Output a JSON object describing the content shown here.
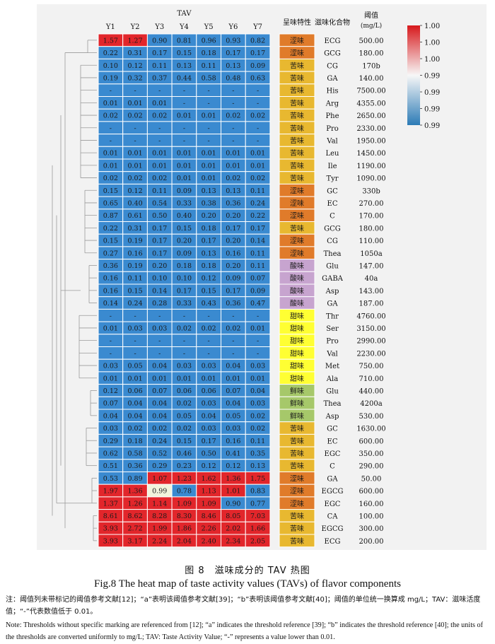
{
  "chart_data": {
    "type": "heatmap",
    "title": "TAV",
    "columns": [
      "Y1",
      "Y2",
      "Y3",
      "Y4",
      "Y5",
      "Y6",
      "Y7"
    ],
    "extra_headers": [
      "呈味特性",
      "滋味化合物",
      "阈值",
      "(mg/L)"
    ],
    "colorbar": {
      "ticks": [
        "1.00",
        "1.00",
        "1.00",
        "0.99",
        "0.99",
        "0.99",
        "0.99"
      ],
      "colors": [
        "#d7191c",
        "#f7f7f7",
        "#2c7bb6"
      ]
    },
    "taste_colors": {
      "涩味": "#e07b2a",
      "苦味": "#e8b830",
      "酸味": "#c7a4cf",
      "甜味": "#ffff33",
      "鲜味": "#a6c86a"
    },
    "rows": [
      {
        "values": [
          "1.57",
          "1.27",
          "0.90",
          "0.81",
          "0.96",
          "0.93",
          "0.82"
        ],
        "levels": [
          2,
          2,
          0,
          0,
          0,
          0,
          0
        ],
        "taste": "涩味",
        "compound": "ECG",
        "threshold": "500.00"
      },
      {
        "values": [
          "0.22",
          "0.31",
          "0.17",
          "0.15",
          "0.18",
          "0.17",
          "0.17"
        ],
        "levels": [
          0,
          0,
          0,
          0,
          0,
          0,
          0
        ],
        "taste": "涩味",
        "compound": "GCG",
        "threshold": "180.00"
      },
      {
        "values": [
          "0.10",
          "0.12",
          "0.11",
          "0.13",
          "0.11",
          "0.13",
          "0.09"
        ],
        "levels": [
          0,
          0,
          0,
          0,
          0,
          0,
          0
        ],
        "taste": "苦味",
        "compound": "CG",
        "threshold": "170b"
      },
      {
        "values": [
          "0.19",
          "0.32",
          "0.37",
          "0.44",
          "0.58",
          "0.48",
          "0.63"
        ],
        "levels": [
          0,
          0,
          0,
          0,
          0,
          0,
          0
        ],
        "taste": "苦味",
        "compound": "GA",
        "threshold": "140.00"
      },
      {
        "values": [
          "-",
          "-",
          "-",
          "-",
          "-",
          "-",
          "-"
        ],
        "levels": [
          0,
          0,
          0,
          0,
          0,
          0,
          0
        ],
        "taste": "苦味",
        "compound": "His",
        "threshold": "7500.00"
      },
      {
        "values": [
          "0.01",
          "0.01",
          "0.01",
          "-",
          "-",
          "-",
          "-"
        ],
        "levels": [
          0,
          0,
          0,
          0,
          0,
          0,
          0
        ],
        "taste": "苦味",
        "compound": "Arg",
        "threshold": "4355.00"
      },
      {
        "values": [
          "0.02",
          "0.02",
          "0.02",
          "0.01",
          "0.01",
          "0.02",
          "0.02"
        ],
        "levels": [
          0,
          0,
          0,
          0,
          0,
          0,
          0
        ],
        "taste": "苦味",
        "compound": "Phe",
        "threshold": "2650.00"
      },
      {
        "values": [
          "-",
          "-",
          "-",
          "-",
          "-",
          "-",
          "-"
        ],
        "levels": [
          0,
          0,
          0,
          0,
          0,
          0,
          0
        ],
        "taste": "苦味",
        "compound": "Pro",
        "threshold": "2330.00"
      },
      {
        "values": [
          "-",
          "-",
          "-",
          "-",
          "-",
          "-",
          "-"
        ],
        "levels": [
          0,
          0,
          0,
          0,
          0,
          0,
          0
        ],
        "taste": "苦味",
        "compound": "Val",
        "threshold": "1950.00"
      },
      {
        "values": [
          "0.01",
          "0.01",
          "0.01",
          "0.01",
          "0.01",
          "0.01",
          "0.01"
        ],
        "levels": [
          0,
          0,
          0,
          0,
          0,
          0,
          0
        ],
        "taste": "苦味",
        "compound": "Leu",
        "threshold": "1450.00"
      },
      {
        "values": [
          "0.01",
          "0.01",
          "0.01",
          "0.01",
          "0.01",
          "0.01",
          "0.01"
        ],
        "levels": [
          0,
          0,
          0,
          0,
          0,
          0,
          0
        ],
        "taste": "苦味",
        "compound": "Ile",
        "threshold": "1190.00"
      },
      {
        "values": [
          "0.02",
          "0.02",
          "0.02",
          "0.01",
          "0.01",
          "0.02",
          "0.02"
        ],
        "levels": [
          0,
          0,
          0,
          0,
          0,
          0,
          0
        ],
        "taste": "苦味",
        "compound": "Tyr",
        "threshold": "1090.00"
      },
      {
        "values": [
          "0.15",
          "0.12",
          "0.11",
          "0.09",
          "0.13",
          "0.13",
          "0.11"
        ],
        "levels": [
          0,
          0,
          0,
          0,
          0,
          0,
          0
        ],
        "taste": "涩味",
        "compound": "GC",
        "threshold": "330b"
      },
      {
        "values": [
          "0.65",
          "0.40",
          "0.54",
          "0.33",
          "0.38",
          "0.36",
          "0.24"
        ],
        "levels": [
          0,
          0,
          0,
          0,
          0,
          0,
          0
        ],
        "taste": "涩味",
        "compound": "EC",
        "threshold": "270.00"
      },
      {
        "values": [
          "0.87",
          "0.61",
          "0.50",
          "0.40",
          "0.20",
          "0.20",
          "0.22"
        ],
        "levels": [
          0,
          0,
          0,
          0,
          0,
          0,
          0
        ],
        "taste": "涩味",
        "compound": "C",
        "threshold": "170.00"
      },
      {
        "values": [
          "0.22",
          "0.31",
          "0.17",
          "0.15",
          "0.18",
          "0.17",
          "0.17"
        ],
        "levels": [
          0,
          0,
          0,
          0,
          0,
          0,
          0
        ],
        "taste": "苦味",
        "compound": "GCG",
        "threshold": "180.00"
      },
      {
        "values": [
          "0.15",
          "0.19",
          "0.17",
          "0.20",
          "0.17",
          "0.20",
          "0.14"
        ],
        "levels": [
          0,
          0,
          0,
          0,
          0,
          0,
          0
        ],
        "taste": "涩味",
        "compound": "CG",
        "threshold": "110.00"
      },
      {
        "values": [
          "0.27",
          "0.16",
          "0.17",
          "0.09",
          "0.13",
          "0.16",
          "0.11"
        ],
        "levels": [
          0,
          0,
          0,
          0,
          0,
          0,
          0
        ],
        "taste": "涩味",
        "compound": "Thea",
        "threshold": "1050a"
      },
      {
        "values": [
          "0.36",
          "0.19",
          "0.20",
          "0.18",
          "0.18",
          "0.20",
          "0.11"
        ],
        "levels": [
          0,
          0,
          0,
          0,
          0,
          0,
          0
        ],
        "taste": "酸味",
        "compound": "Glu",
        "threshold": "147.00"
      },
      {
        "values": [
          "0.16",
          "0.11",
          "0.10",
          "0.10",
          "0.12",
          "0.09",
          "0.07"
        ],
        "levels": [
          0,
          0,
          0,
          0,
          0,
          0,
          0
        ],
        "taste": "酸味",
        "compound": "GABA",
        "threshold": "40a"
      },
      {
        "values": [
          "0.16",
          "0.15",
          "0.14",
          "0.17",
          "0.15",
          "0.17",
          "0.09"
        ],
        "levels": [
          0,
          0,
          0,
          0,
          0,
          0,
          0
        ],
        "taste": "酸味",
        "compound": "Asp",
        "threshold": "143.00"
      },
      {
        "values": [
          "0.14",
          "0.24",
          "0.28",
          "0.33",
          "0.43",
          "0.36",
          "0.47"
        ],
        "levels": [
          0,
          0,
          0,
          0,
          0,
          0,
          0
        ],
        "taste": "酸味",
        "compound": "GA",
        "threshold": "187.00"
      },
      {
        "values": [
          "-",
          "-",
          "-",
          "-",
          "-",
          "-",
          "-"
        ],
        "levels": [
          0,
          0,
          0,
          0,
          0,
          0,
          0
        ],
        "taste": "甜味",
        "compound": "Thr",
        "threshold": "4760.00"
      },
      {
        "values": [
          "0.01",
          "0.03",
          "0.03",
          "0.02",
          "0.02",
          "0.02",
          "0.01"
        ],
        "levels": [
          0,
          0,
          0,
          0,
          0,
          0,
          0
        ],
        "taste": "甜味",
        "compound": "Ser",
        "threshold": "3150.00"
      },
      {
        "values": [
          "-",
          "-",
          "-",
          "-",
          "-",
          "-",
          "-"
        ],
        "levels": [
          0,
          0,
          0,
          0,
          0,
          0,
          0
        ],
        "taste": "甜味",
        "compound": "Pro",
        "threshold": "2990.00"
      },
      {
        "values": [
          "-",
          "-",
          "-",
          "-",
          "-",
          "-",
          "-"
        ],
        "levels": [
          0,
          0,
          0,
          0,
          0,
          0,
          0
        ],
        "taste": "甜味",
        "compound": "Val",
        "threshold": "2230.00"
      },
      {
        "values": [
          "0.03",
          "0.05",
          "0.04",
          "0.03",
          "0.03",
          "0.04",
          "0.03"
        ],
        "levels": [
          0,
          0,
          0,
          0,
          0,
          0,
          0
        ],
        "taste": "甜味",
        "compound": "Met",
        "threshold": "750.00"
      },
      {
        "values": [
          "0.01",
          "0.01",
          "0.01",
          "0.01",
          "0.01",
          "0.01",
          "0.01"
        ],
        "levels": [
          0,
          0,
          0,
          0,
          0,
          0,
          0
        ],
        "taste": "甜味",
        "compound": "Ala",
        "threshold": "710.00"
      },
      {
        "values": [
          "0.12",
          "0.06",
          "0.07",
          "0.06",
          "0.06",
          "0.07",
          "0.04"
        ],
        "levels": [
          0,
          0,
          0,
          0,
          0,
          0,
          0
        ],
        "taste": "鲜味",
        "compound": "Glu",
        "threshold": "440.00"
      },
      {
        "values": [
          "0.07",
          "0.04",
          "0.04",
          "0.02",
          "0.03",
          "0.04",
          "0.03"
        ],
        "levels": [
          0,
          0,
          0,
          0,
          0,
          0,
          0
        ],
        "taste": "鲜味",
        "compound": "Thea",
        "threshold": "4200a"
      },
      {
        "values": [
          "0.04",
          "0.04",
          "0.04",
          "0.05",
          "0.04",
          "0.05",
          "0.02"
        ],
        "levels": [
          0,
          0,
          0,
          0,
          0,
          0,
          0
        ],
        "taste": "鲜味",
        "compound": "Asp",
        "threshold": "530.00"
      },
      {
        "values": [
          "0.03",
          "0.02",
          "0.02",
          "0.02",
          "0.03",
          "0.03",
          "0.02"
        ],
        "levels": [
          0,
          0,
          0,
          0,
          0,
          0,
          0
        ],
        "taste": "苦味",
        "compound": "GC",
        "threshold": "1630.00"
      },
      {
        "values": [
          "0.29",
          "0.18",
          "0.24",
          "0.15",
          "0.17",
          "0.16",
          "0.11"
        ],
        "levels": [
          0,
          0,
          0,
          0,
          0,
          0,
          0
        ],
        "taste": "苦味",
        "compound": "EC",
        "threshold": "600.00"
      },
      {
        "values": [
          "0.62",
          "0.58",
          "0.52",
          "0.46",
          "0.50",
          "0.41",
          "0.35"
        ],
        "levels": [
          0,
          0,
          0,
          0,
          0,
          0,
          0
        ],
        "taste": "苦味",
        "compound": "EGC",
        "threshold": "350.00"
      },
      {
        "values": [
          "0.51",
          "0.36",
          "0.29",
          "0.23",
          "0.12",
          "0.12",
          "0.13"
        ],
        "levels": [
          0,
          0,
          0,
          0,
          0,
          0,
          0
        ],
        "taste": "苦味",
        "compound": "C",
        "threshold": "290.00"
      },
      {
        "values": [
          "0.53",
          "0.89",
          "1.07",
          "1.23",
          "1.62",
          "1.36",
          "1.75"
        ],
        "levels": [
          0,
          0,
          2,
          2,
          2,
          2,
          2
        ],
        "taste": "涩味",
        "compound": "GA",
        "threshold": "50.00"
      },
      {
        "values": [
          "1.97",
          "1.36",
          "0.99",
          "0.78",
          "1.13",
          "1.01",
          "0.83"
        ],
        "levels": [
          2,
          2,
          1,
          0,
          2,
          2,
          0
        ],
        "taste": "涩味",
        "compound": "EGCG",
        "threshold": "600.00"
      },
      {
        "values": [
          "1.37",
          "1.26",
          "1.14",
          "1.09",
          "1.09",
          "0.90",
          "0.77"
        ],
        "levels": [
          2,
          2,
          2,
          2,
          2,
          0,
          0
        ],
        "taste": "涩味",
        "compound": "EGC",
        "threshold": "160.00"
      },
      {
        "values": [
          "8.61",
          "8.62",
          "8.28",
          "8.30",
          "8.46",
          "8.05",
          "7.03"
        ],
        "levels": [
          2,
          2,
          2,
          2,
          2,
          2,
          2
        ],
        "taste": "苦味",
        "compound": "CA",
        "threshold": "100.00"
      },
      {
        "values": [
          "3.93",
          "2.72",
          "1.99",
          "1.86",
          "2.26",
          "2.02",
          "1.66"
        ],
        "levels": [
          2,
          2,
          2,
          2,
          2,
          2,
          2
        ],
        "taste": "苦味",
        "compound": "EGCG",
        "threshold": "300.00"
      },
      {
        "values": [
          "3.93",
          "3.17",
          "2.24",
          "2.04",
          "2.40",
          "2.34",
          "2.05"
        ],
        "levels": [
          2,
          2,
          2,
          2,
          2,
          2,
          2
        ],
        "taste": "苦味",
        "compound": "ECG",
        "threshold": "200.00"
      }
    ]
  },
  "captions": {
    "cn": "图 8　滋味成分的 TAV 热图",
    "en": "Fig.8 The heat map of taste activity values (TAVs) of flavor components"
  },
  "notes": {
    "cn": "注：阈值列未带标记的阈值参考文献[12]；“a”表明该阈值参考文献[39]；“b”表明该阈值参考文献[40]；阈值的单位统一换算成 mg/L；TAV：滋味活度值；“-”代表数值低于 0.01。",
    "en": "Note: Thresholds without specific marking are referenced from [12]; “a” indicates the threshold reference [39]; “b” indicates the threshold reference [40]; the units of the thresholds are converted uniformly to mg/L; TAV: Taste Activity Value; “-” represents a value lower than 0.01."
  }
}
